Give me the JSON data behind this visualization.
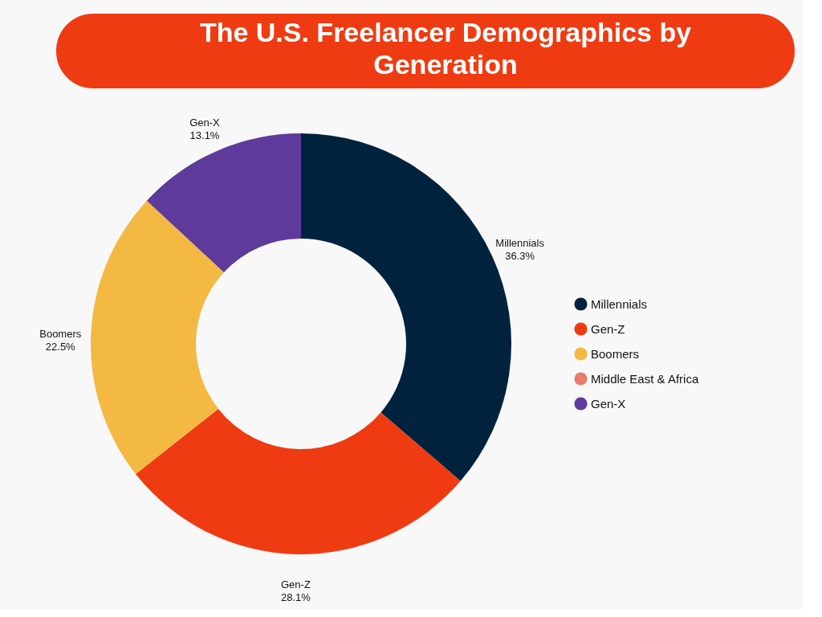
{
  "chart_data": {
    "type": "donut",
    "title": "The U.S. Freelancer Demographics by Generation",
    "categories": [
      "Millennials",
      "Gen-Z",
      "Boomers",
      "Middle East & Africa",
      "Gen-X"
    ],
    "values": [
      36.3,
      28.1,
      22.5,
      0,
      13.1
    ],
    "value_labels": [
      "36.3%",
      "28.1%",
      "22.5%",
      null,
      "13.1%"
    ],
    "colors": [
      "#01223d",
      "#ef3b12",
      "#f4b942",
      "#e87b6a",
      "#5e3a9b"
    ],
    "legend": "right"
  }
}
